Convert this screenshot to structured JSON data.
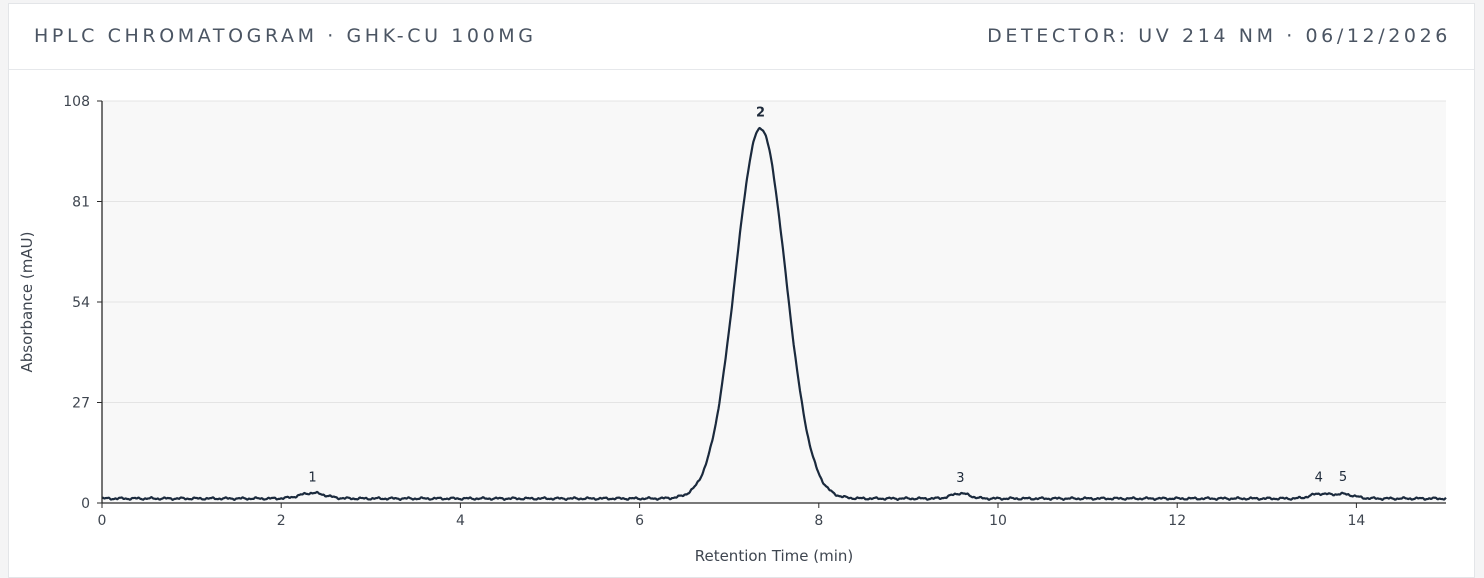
{
  "header": {
    "title": "HPLC CHROMATOGRAM · GHK-CU 100MG",
    "meta": "DETECTOR: UV 214 NM · 06/12/2026"
  },
  "colors": {
    "trace": "#1b2a3d",
    "plot_background": "#f8f8f8",
    "gridline": "#e4e4e4",
    "axis": "#2b2b2b"
  },
  "chart_data": {
    "type": "line",
    "xlabel": "Retention Time (min)",
    "ylabel": "Absorbance (mAU)",
    "xlim": [
      0,
      15
    ],
    "ylim": [
      0,
      108
    ],
    "x_ticks": [
      "0",
      "2",
      "4",
      "6",
      "8",
      "10",
      "12",
      "14"
    ],
    "y_ticks": [
      "0",
      "27",
      "54",
      "81",
      "108"
    ],
    "grid": "horizontal",
    "baseline_mau": 1.2,
    "peaks": [
      {
        "label": "1",
        "rt": 2.35,
        "height": 1.5,
        "width": 0.14,
        "bold": false
      },
      {
        "label": "2",
        "rt": 7.35,
        "height": 99.5,
        "width": 0.28,
        "bold": true
      },
      {
        "label": "3",
        "rt": 9.58,
        "height": 1.4,
        "width": 0.1,
        "bold": false
      },
      {
        "label": "4",
        "rt": 13.58,
        "height": 1.2,
        "width": 0.1,
        "bold": false
      },
      {
        "label": "5",
        "rt": 13.85,
        "height": 1.2,
        "width": 0.12,
        "bold": false
      }
    ]
  }
}
